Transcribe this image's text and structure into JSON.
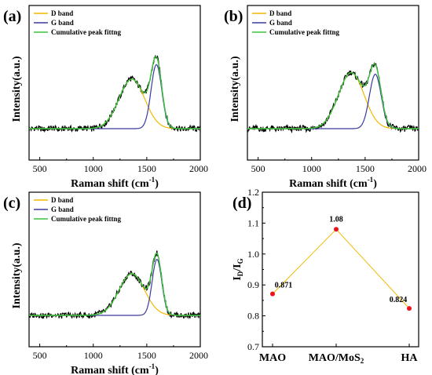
{
  "colors": {
    "d_band": "#f2b800",
    "g_band": "#3b3b9e",
    "cumulative": "#3cc43c",
    "raw": "#000000",
    "points": "#e8141e",
    "connector": "#f2b800"
  },
  "chart_data": [
    {
      "type": "line",
      "panel_label": "(a)",
      "xlabel": "Raman shift (cm",
      "xlabel_sup": "-1",
      "xlabel_close": ")",
      "ylabel": "Intensity(a.u.)",
      "xlim": [
        400,
        2000
      ],
      "xticks": [
        "500",
        "1000",
        "1500",
        "2000"
      ],
      "legend": [
        "D band",
        "G band",
        "Cumulative peak fittng"
      ],
      "legend_position": "top-left",
      "baseline": 0.0,
      "d_band": {
        "center": 1360,
        "height": 0.62,
        "width": 120
      },
      "g_band": {
        "center": 1590,
        "height": 0.8,
        "width": 50
      }
    },
    {
      "type": "line",
      "panel_label": "(b)",
      "xlabel": "Raman shift (cm",
      "xlabel_sup": "-1",
      "xlabel_close": ")",
      "ylabel": "Intensity(a.u.)",
      "xlim": [
        400,
        2000
      ],
      "xticks": [
        "500",
        "1000",
        "1500",
        "2000"
      ],
      "legend": [
        "D band",
        "G band",
        "Cumulative peak fittng"
      ],
      "legend_position": "top-left",
      "baseline": 0.0,
      "d_band": {
        "center": 1370,
        "height": 0.7,
        "width": 120
      },
      "g_band": {
        "center": 1595,
        "height": 0.68,
        "width": 55
      }
    },
    {
      "type": "line",
      "panel_label": "(c)",
      "xlabel": "Raman shift (cm",
      "xlabel_sup": "-1",
      "xlabel_close": ")",
      "ylabel": "Intensity(a.u.)",
      "xlim": [
        400,
        2000
      ],
      "xticks": [
        "500",
        "1000",
        "1500",
        "2000"
      ],
      "legend": [
        "D band",
        "G band",
        "Cumulative peak fittng"
      ],
      "legend_position": "top-left",
      "baseline": 0.0,
      "d_band": {
        "center": 1360,
        "height": 0.52,
        "width": 120
      },
      "g_band": {
        "center": 1595,
        "height": 0.7,
        "width": 45
      }
    },
    {
      "type": "scatter",
      "panel_label": "(d)",
      "categories": [
        "MAO",
        "MAO/MoS",
        "HA"
      ],
      "category_subscripts": [
        "",
        "2",
        ""
      ],
      "values": [
        0.871,
        1.08,
        0.824
      ],
      "data_labels": [
        "0.871",
        "1.08",
        "0.824"
      ],
      "ylabel": "I",
      "ylabel_sub1": "D",
      "ylabel_mid": "/I",
      "ylabel_sub2": "G",
      "ylim": [
        0.7,
        1.2
      ],
      "yticks": [
        "0.7",
        "0.8",
        "0.9",
        "1.0",
        "1.1",
        "1.2"
      ]
    }
  ]
}
